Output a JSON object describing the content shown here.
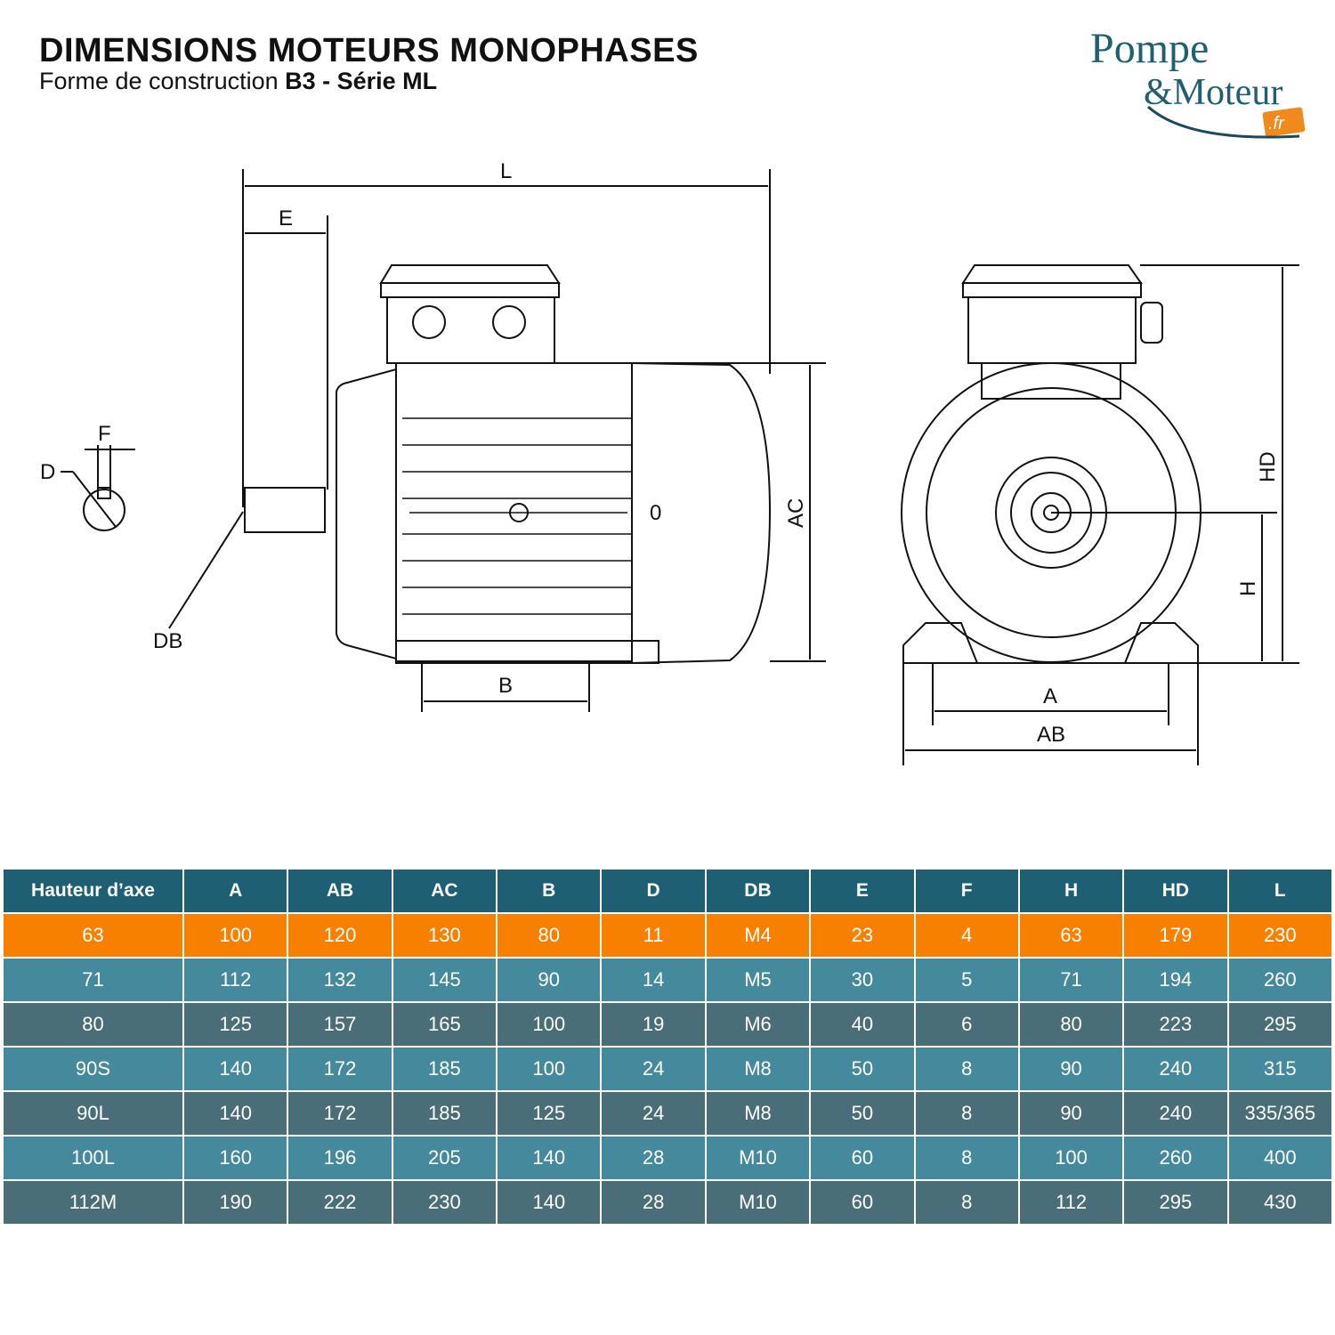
{
  "header": {
    "title": "DIMENSIONS MOTEURS MONOPHASES",
    "subtitle_prefix": "Forme de construction ",
    "subtitle_bold": "B3 - Série ML"
  },
  "logo": {
    "line1": "Pompe",
    "line2": "&Moteur",
    "tld": ".fr",
    "colors": {
      "text": "#1f5f73",
      "accent": "#f08a1c"
    }
  },
  "diagram_labels": {
    "L": "L",
    "E": "E",
    "F": "F",
    "D": "D",
    "DB": "DB",
    "B": "B",
    "AC": "AC",
    "O": "0",
    "HD": "HD",
    "H": "H",
    "A": "A",
    "AB": "AB"
  },
  "colors": {
    "header": "#1f5f73",
    "highlight": "#f78000",
    "row_light": "#458a9c",
    "row_dark": "#4a6e78"
  },
  "table": {
    "columns": [
      "Hauteur d’axe",
      "A",
      "AB",
      "AC",
      "B",
      "D",
      "DB",
      "E",
      "F",
      "H",
      "HD",
      "L"
    ],
    "rows": [
      [
        "63",
        "100",
        "120",
        "130",
        "80",
        "11",
        "M4",
        "23",
        "4",
        "63",
        "179",
        "230"
      ],
      [
        "71",
        "112",
        "132",
        "145",
        "90",
        "14",
        "M5",
        "30",
        "5",
        "71",
        "194",
        "260"
      ],
      [
        "80",
        "125",
        "157",
        "165",
        "100",
        "19",
        "M6",
        "40",
        "6",
        "80",
        "223",
        "295"
      ],
      [
        "90S",
        "140",
        "172",
        "185",
        "100",
        "24",
        "M8",
        "50",
        "8",
        "90",
        "240",
        "315"
      ],
      [
        "90L",
        "140",
        "172",
        "185",
        "125",
        "24",
        "M8",
        "50",
        "8",
        "90",
        "240",
        "335/365"
      ],
      [
        "100L",
        "160",
        "196",
        "205",
        "140",
        "28",
        "M10",
        "60",
        "8",
        "100",
        "260",
        "400"
      ],
      [
        "112M",
        "190",
        "222",
        "230",
        "140",
        "28",
        "M10",
        "60",
        "8",
        "112",
        "295",
        "430"
      ]
    ]
  }
}
